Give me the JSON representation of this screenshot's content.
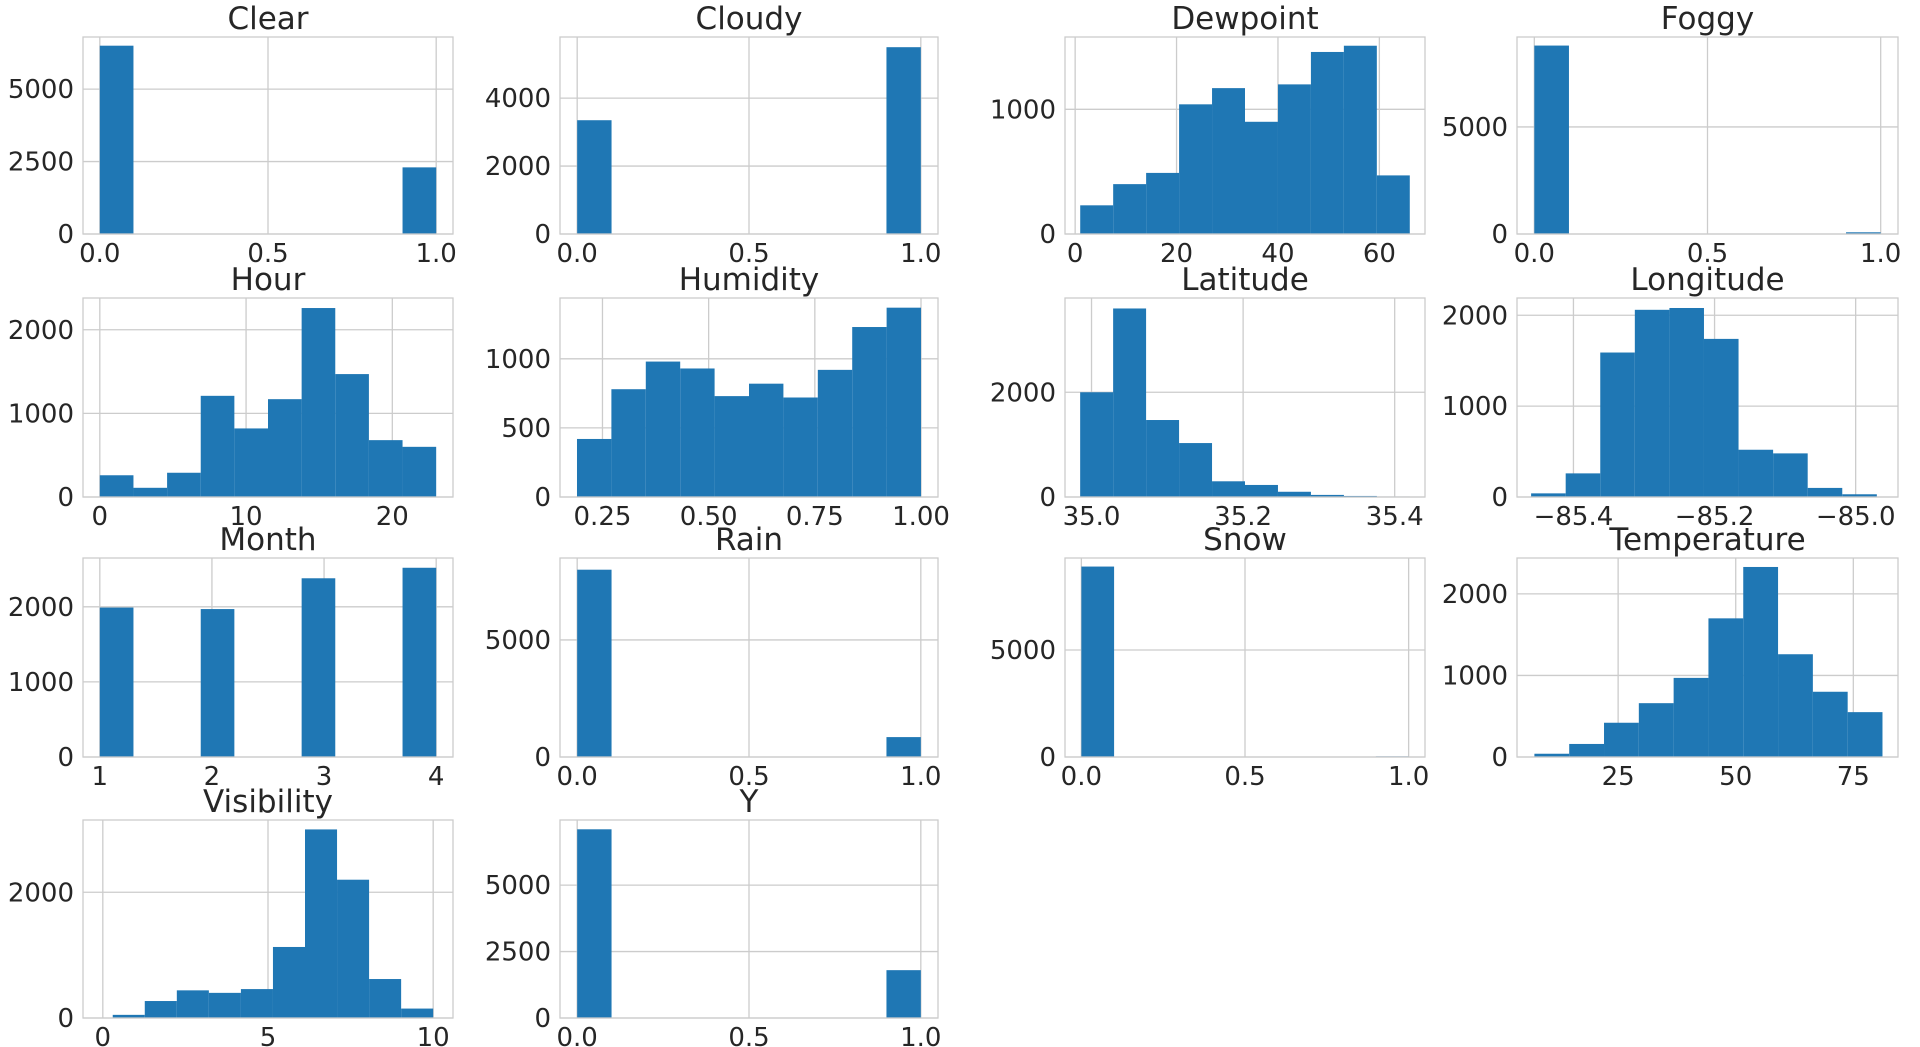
{
  "figure": {
    "background": "#ffffff"
  },
  "style": {
    "bar_color": "#1f77b4",
    "grid_color": "#cccccc",
    "axes_edge": "#cccccc",
    "text_color": "#262626"
  },
  "chart_data": [
    {
      "type": "bar",
      "title": "Clear",
      "xlim": [
        -0.05,
        1.05
      ],
      "ylim": [
        0,
        6800
      ],
      "xticks": [
        0.0,
        0.5,
        1.0
      ],
      "xtick_labels": [
        "0.0",
        "0.5",
        "1.0"
      ],
      "yticks": [
        0,
        2500,
        5000
      ],
      "ytick_labels": [
        "0",
        "2500",
        "5000"
      ],
      "bins": [
        [
          0,
          0.1,
          6500
        ],
        [
          0.9,
          1.0,
          2300
        ]
      ]
    },
    {
      "type": "bar",
      "title": "Cloudy",
      "xlim": [
        -0.05,
        1.05
      ],
      "ylim": [
        0,
        5800
      ],
      "xticks": [
        0.0,
        0.5,
        1.0
      ],
      "xtick_labels": [
        "0.0",
        "0.5",
        "1.0"
      ],
      "yticks": [
        0,
        2000,
        4000
      ],
      "ytick_labels": [
        "0",
        "2000",
        "4000"
      ],
      "bins": [
        [
          0,
          0.1,
          3350
        ],
        [
          0.9,
          1.0,
          5500
        ]
      ]
    },
    {
      "type": "bar",
      "title": "Dewpoint",
      "xlim": [
        -2,
        69
      ],
      "ylim": [
        0,
        1580
      ],
      "xticks": [
        0,
        20,
        40,
        60
      ],
      "xtick_labels": [
        "0",
        "20",
        "40",
        "60"
      ],
      "yticks": [
        0,
        1000
      ],
      "ytick_labels": [
        "0",
        "1000"
      ],
      "bins": [
        [
          1,
          7.5,
          230
        ],
        [
          7.5,
          14,
          400
        ],
        [
          14,
          20.5,
          490
        ],
        [
          20.5,
          27,
          1040
        ],
        [
          27,
          33.5,
          1170
        ],
        [
          33.5,
          40,
          900
        ],
        [
          40,
          46.5,
          1200
        ],
        [
          46.5,
          53,
          1460
        ],
        [
          53,
          59.5,
          1510
        ],
        [
          59.5,
          66,
          470
        ]
      ]
    },
    {
      "type": "bar",
      "title": "Foggy",
      "xlim": [
        -0.05,
        1.05
      ],
      "ylim": [
        0,
        9200
      ],
      "xticks": [
        0.0,
        0.5,
        1.0
      ],
      "xtick_labels": [
        "0.0",
        "0.5",
        "1.0"
      ],
      "yticks": [
        0,
        5000
      ],
      "ytick_labels": [
        "0",
        "5000"
      ],
      "bins": [
        [
          0,
          0.1,
          8800
        ],
        [
          0.9,
          1.0,
          80
        ]
      ]
    },
    {
      "type": "bar",
      "title": "Hour",
      "xlim": [
        -1.15,
        24.15
      ],
      "ylim": [
        0,
        2380
      ],
      "xticks": [
        0,
        10,
        20
      ],
      "xtick_labels": [
        "0",
        "10",
        "20"
      ],
      "yticks": [
        0,
        1000,
        2000
      ],
      "ytick_labels": [
        "0",
        "1000",
        "2000"
      ],
      "bins": [
        [
          0,
          2.3,
          260
        ],
        [
          2.3,
          4.6,
          110
        ],
        [
          4.6,
          6.9,
          290
        ],
        [
          6.9,
          9.2,
          1210
        ],
        [
          9.2,
          11.5,
          820
        ],
        [
          11.5,
          13.8,
          1170
        ],
        [
          13.8,
          16.1,
          2260
        ],
        [
          16.1,
          18.4,
          1470
        ],
        [
          18.4,
          20.7,
          680
        ],
        [
          20.7,
          23,
          600
        ]
      ]
    },
    {
      "type": "bar",
      "title": "Humidity",
      "xlim": [
        0.15,
        1.04
      ],
      "ylim": [
        0,
        1440
      ],
      "xticks": [
        0.25,
        0.5,
        0.75,
        1.0
      ],
      "xtick_labels": [
        "0.25",
        "0.50",
        "0.75",
        "1.00"
      ],
      "yticks": [
        0,
        500,
        1000
      ],
      "ytick_labels": [
        "0",
        "500",
        "1000"
      ],
      "bins": [
        [
          0.19,
          0.271,
          420
        ],
        [
          0.271,
          0.352,
          780
        ],
        [
          0.352,
          0.433,
          980
        ],
        [
          0.433,
          0.514,
          930
        ],
        [
          0.514,
          0.595,
          730
        ],
        [
          0.595,
          0.676,
          820
        ],
        [
          0.676,
          0.757,
          720
        ],
        [
          0.757,
          0.838,
          920
        ],
        [
          0.838,
          0.919,
          1230
        ],
        [
          0.919,
          1.0,
          1370
        ]
      ]
    },
    {
      "type": "bar",
      "title": "Latitude",
      "xlim": [
        34.965,
        35.44
      ],
      "ylim": [
        0,
        3800
      ],
      "xticks": [
        35.0,
        35.2,
        35.4
      ],
      "xtick_labels": [
        "35.0",
        "35.2",
        "35.4"
      ],
      "yticks": [
        0,
        2000
      ],
      "ytick_labels": [
        "0",
        "2000"
      ],
      "bins": [
        [
          34.985,
          35.0285,
          2000
        ],
        [
          35.0285,
          35.072,
          3600
        ],
        [
          35.072,
          35.1155,
          1470
        ],
        [
          35.1155,
          35.159,
          1030
        ],
        [
          35.159,
          35.2025,
          300
        ],
        [
          35.2025,
          35.246,
          230
        ],
        [
          35.246,
          35.2895,
          100
        ],
        [
          35.2895,
          35.333,
          40
        ],
        [
          35.333,
          35.3765,
          20
        ],
        [
          35.3765,
          35.42,
          10
        ]
      ]
    },
    {
      "type": "bar",
      "title": "Longitude",
      "xlim": [
        -85.48,
        -84.94
      ],
      "ylim": [
        0,
        2190
      ],
      "xticks": [
        -85.4,
        -85.2,
        -85.0
      ],
      "xtick_labels": [
        "−85.4",
        "−85.2",
        "−85.0"
      ],
      "yticks": [
        0,
        1000,
        2000
      ],
      "ytick_labels": [
        "0",
        "1000",
        "2000"
      ],
      "bins": [
        [
          -85.46,
          -85.411,
          40
        ],
        [
          -85.411,
          -85.362,
          260
        ],
        [
          -85.362,
          -85.313,
          1590
        ],
        [
          -85.313,
          -85.264,
          2060
        ],
        [
          -85.264,
          -85.215,
          2080
        ],
        [
          -85.215,
          -85.166,
          1740
        ],
        [
          -85.166,
          -85.117,
          520
        ],
        [
          -85.117,
          -85.068,
          480
        ],
        [
          -85.068,
          -85.019,
          100
        ],
        [
          -85.019,
          -84.97,
          30
        ]
      ]
    },
    {
      "type": "bar",
      "title": "Month",
      "xlim": [
        0.85,
        4.15
      ],
      "ylim": [
        0,
        2650
      ],
      "xticks": [
        1,
        2,
        3,
        4
      ],
      "xtick_labels": [
        "1",
        "2",
        "3",
        "4"
      ],
      "yticks": [
        0,
        1000,
        2000
      ],
      "ytick_labels": [
        "0",
        "1000",
        "2000"
      ],
      "bins": [
        [
          1,
          1.3,
          1990
        ],
        [
          1.9,
          2.2,
          1970
        ],
        [
          2.8,
          3.1,
          2380
        ],
        [
          3.7,
          4.0,
          2520
        ]
      ]
    },
    {
      "type": "bar",
      "title": "Rain",
      "xlim": [
        -0.05,
        1.05
      ],
      "ylim": [
        0,
        8500
      ],
      "xticks": [
        0.0,
        0.5,
        1.0
      ],
      "xtick_labels": [
        "0.0",
        "0.5",
        "1.0"
      ],
      "yticks": [
        0,
        5000
      ],
      "ytick_labels": [
        "0",
        "5000"
      ],
      "bins": [
        [
          0,
          0.1,
          8000
        ],
        [
          0.9,
          1.0,
          850
        ]
      ]
    },
    {
      "type": "bar",
      "title": "Snow",
      "xlim": [
        -0.05,
        1.05
      ],
      "ylim": [
        0,
        9300
      ],
      "xticks": [
        0.0,
        0.5,
        1.0
      ],
      "xtick_labels": [
        "0.0",
        "0.5",
        "1.0"
      ],
      "yticks": [
        0,
        5000
      ],
      "ytick_labels": [
        "0",
        "5000"
      ],
      "bins": [
        [
          0,
          0.1,
          8900
        ],
        [
          0.9,
          1.0,
          30
        ]
      ]
    },
    {
      "type": "bar",
      "title": "Temperature",
      "xlim": [
        3.5,
        84.5
      ],
      "ylim": [
        0,
        2440
      ],
      "xticks": [
        25,
        50,
        75
      ],
      "xtick_labels": [
        "25",
        "50",
        "75"
      ],
      "yticks": [
        0,
        1000,
        2000
      ],
      "ytick_labels": [
        "0",
        "1000",
        "2000"
      ],
      "bins": [
        [
          7.2,
          14.6,
          40
        ],
        [
          14.6,
          22,
          160
        ],
        [
          22,
          29.4,
          420
        ],
        [
          29.4,
          36.8,
          660
        ],
        [
          36.8,
          44.2,
          970
        ],
        [
          44.2,
          51.6,
          1700
        ],
        [
          51.6,
          59,
          2330
        ],
        [
          59,
          66.4,
          1260
        ],
        [
          66.4,
          73.8,
          800
        ],
        [
          73.8,
          81.2,
          550
        ]
      ]
    },
    {
      "type": "bar",
      "title": "Visibility",
      "xlim": [
        -0.6,
        10.6
      ],
      "ylim": [
        0,
        3150
      ],
      "xticks": [
        0,
        5,
        10
      ],
      "xtick_labels": [
        "0",
        "5",
        "10"
      ],
      "yticks": [
        0,
        2000
      ],
      "ytick_labels": [
        "0",
        "2000"
      ],
      "bins": [
        [
          0.3,
          1.27,
          50
        ],
        [
          1.27,
          2.24,
          270
        ],
        [
          2.24,
          3.21,
          440
        ],
        [
          3.21,
          4.18,
          400
        ],
        [
          4.18,
          5.15,
          460
        ],
        [
          5.15,
          6.12,
          1130
        ],
        [
          6.12,
          7.09,
          3000
        ],
        [
          7.09,
          8.06,
          2200
        ],
        [
          8.06,
          9.03,
          620
        ],
        [
          9.03,
          10.0,
          150
        ]
      ]
    },
    {
      "type": "bar",
      "title": "Y",
      "xlim": [
        -0.05,
        1.05
      ],
      "ylim": [
        0,
        7450
      ],
      "xticks": [
        0.0,
        0.5,
        1.0
      ],
      "xtick_labels": [
        "0.0",
        "0.5",
        "1.0"
      ],
      "yticks": [
        0,
        2500,
        5000
      ],
      "ytick_labels": [
        "0",
        "2500",
        "5000"
      ],
      "bins": [
        [
          0,
          0.1,
          7100
        ],
        [
          0.9,
          1.0,
          1800
        ]
      ]
    }
  ]
}
